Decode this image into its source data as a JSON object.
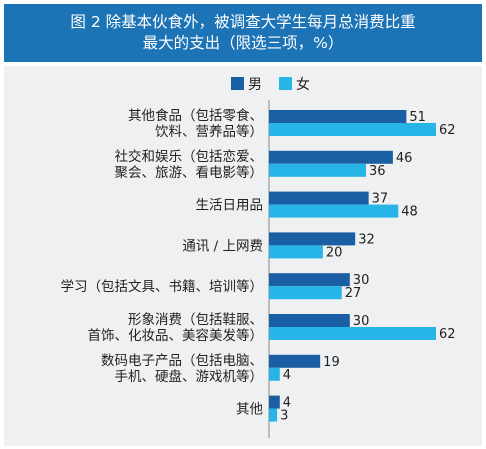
{
  "chart_data": {
    "type": "bar",
    "orientation": "horizontal",
    "title": "图 2  除基本伙食外，被调查大学生每月总消费比重最大的支出（限选三项，%）",
    "title_lines": [
      "图 2  除基本伙食外，被调查大学生每月总消费比重",
      "最大的支出（限选三项，%）"
    ],
    "categories": [
      [
        "其他食品（包括零食、",
        "饮料、营养品等）"
      ],
      [
        "社交和娱乐（包括恋爱、",
        "聚会、旅游、看电影等）"
      ],
      [
        "生活日用品"
      ],
      [
        "通讯 / 上网费"
      ],
      [
        "学习（包括文具、书籍、培训等）"
      ],
      [
        "形象消费（包括鞋服、",
        "首饰、化妆品、美容美发等）"
      ],
      [
        "数码电子产品（包括电脑、",
        "手机、硬盘、游戏机等）"
      ],
      [
        "其他"
      ]
    ],
    "series": [
      {
        "name": "男",
        "color": "#1a5fa3",
        "values": [
          51,
          46,
          37,
          32,
          30,
          30,
          19,
          4
        ]
      },
      {
        "name": "女",
        "color": "#27b4e6",
        "values": [
          62,
          36,
          48,
          20,
          27,
          62,
          4,
          3
        ]
      }
    ],
    "xlim": [
      0,
      62
    ],
    "legend": "top-center",
    "grid": false
  }
}
